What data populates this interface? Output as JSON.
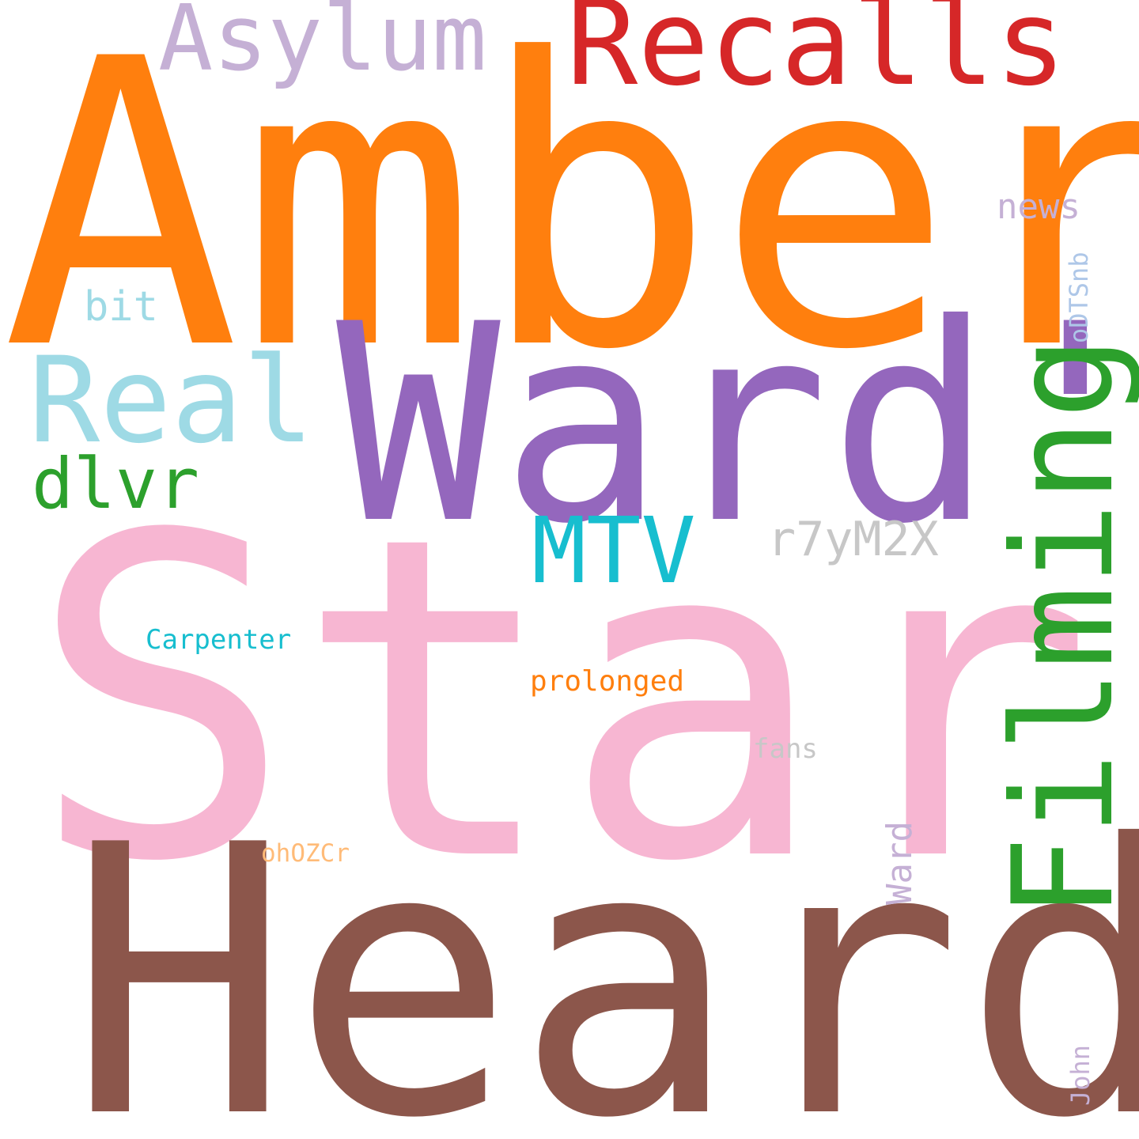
{
  "cloud": {
    "words": [
      {
        "text": "Amber",
        "color": "#ff7f0e"
      },
      {
        "text": "Star",
        "color": "#f7b6d2"
      },
      {
        "text": "Heard",
        "color": "#8c564b"
      },
      {
        "text": "Ward'",
        "color": "#9467bd"
      },
      {
        "text": "Filming",
        "color": "#2ca02c"
      },
      {
        "text": "Recalls",
        "color": "#d62728"
      },
      {
        "text": "Asylum",
        "color": "#c5b0d5"
      },
      {
        "text": "Real",
        "color": "#9edae5"
      },
      {
        "text": "MTV",
        "color": "#17becf"
      },
      {
        "text": "dlvr",
        "color": "#2ca02c"
      },
      {
        "text": "r7yM2X",
        "color": "#c7c7c7"
      },
      {
        "text": "news",
        "color": "#c5b0d5"
      },
      {
        "text": "oDTSnb",
        "color": "#aec7e8"
      },
      {
        "text": "bit",
        "color": "#9edae5"
      },
      {
        "text": "Carpenter",
        "color": "#17becf"
      },
      {
        "text": "prolonged",
        "color": "#ff7f0e"
      },
      {
        "text": "fans",
        "color": "#c7c7c7"
      },
      {
        "text": "Ward",
        "color": "#c5b0d5"
      },
      {
        "text": "ohOZCr",
        "color": "#ffbb78"
      },
      {
        "text": "John",
        "color": "#c5b0d5"
      }
    ]
  }
}
